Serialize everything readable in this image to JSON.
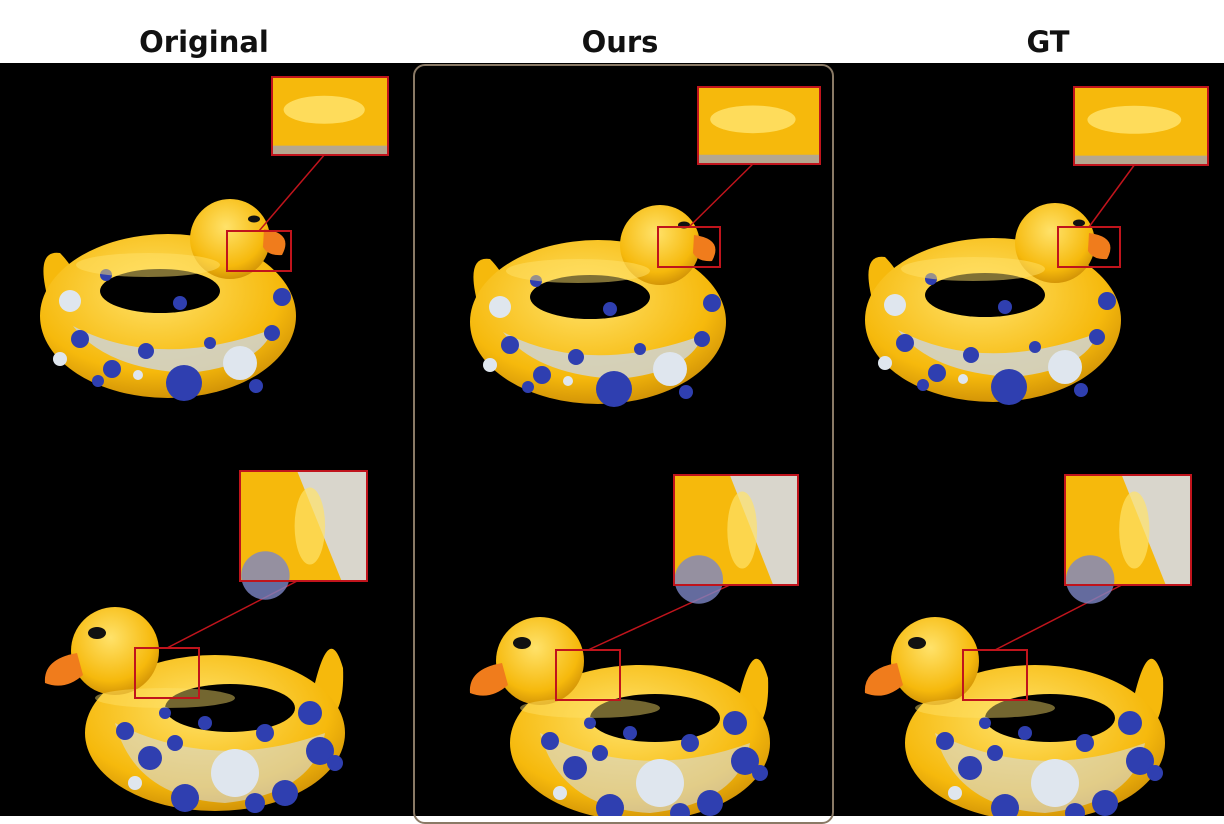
{
  "columns": [
    {
      "key": "original",
      "title": "Original"
    },
    {
      "key": "ours",
      "title": "Ours"
    },
    {
      "key": "gt",
      "title": "GT"
    }
  ],
  "colors": {
    "background": "#000000",
    "duck_yellow": "#f6b90c",
    "duck_highlight": "#ffe26a",
    "spot_blue": "#2f3fb0",
    "spot_white": "#dfe6ee",
    "beak_orange": "#f07c1c",
    "zoom_box": "#c0141c",
    "selection_frame": "#8a7a66"
  },
  "highlighted_column": "ours"
}
